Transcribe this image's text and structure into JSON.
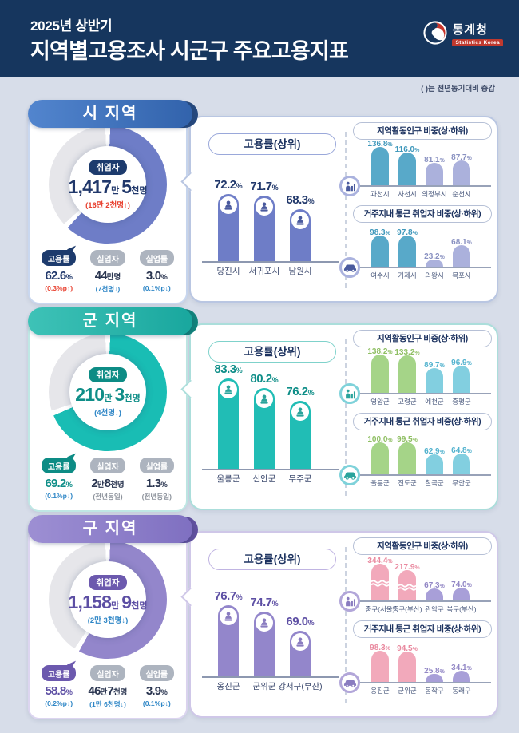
{
  "header": {
    "subtitle": "2025년 상반기",
    "title": "지역별고용조사 시군구 주요고용지표",
    "logo_name": "통계청",
    "logo_sub": "Statistics Korea"
  },
  "meta": {
    "note": "(  )는 전년동기대비 증감"
  },
  "colors": {
    "header_bg": "#16365e",
    "page_bg": "#d7dde9",
    "change_up": "#e8402f",
    "change_down": "#2e86c6",
    "change_same": "#8d939c",
    "donut_rest": "#e6e6ea"
  },
  "panels": [
    {
      "id": "si",
      "title": "시 지역",
      "theme": {
        "banner_from": "#5285ce",
        "banner_to": "#3263ac",
        "banner_fold": "#26497e",
        "card_border": "#c9d7ef",
        "right_border": "#b9c6e2",
        "donut": "#6e7dc7",
        "badge": "#1d3b6d",
        "val": "#21386b",
        "midbar": "#6e7dc7",
        "mid_border": "#9aa8da",
        "icon": "#4a5a9e",
        "icon_ring": "#aab2de",
        "top_bar": "#58a9c9",
        "top_val": "#3f98bb",
        "bottom_bar": "#abb1dc",
        "bottom_val": "#8991c1"
      },
      "employed": {
        "label": "취업자",
        "value_segments": [
          {
            "t": "1,417",
            "big": true
          },
          {
            "t": "만 ",
            "big": false
          },
          {
            "t": "5",
            "big": true
          },
          {
            "t": "천명",
            "big": false
          }
        ],
        "change": "(16만 2천명↑)",
        "dir": "up",
        "percent": 62.6
      },
      "stats": [
        {
          "label": "고용률",
          "segments": [
            {
              "t": "62.6",
              "big": true
            },
            {
              "t": "%",
              "big": false
            }
          ],
          "change": "(0.3%p↑)",
          "dir": "up",
          "emphasis": true
        },
        {
          "label": "실업자",
          "segments": [
            {
              "t": "44",
              "big": true
            },
            {
              "t": "만명",
              "big": false
            }
          ],
          "change": "(7천명↓)",
          "dir": "down",
          "emphasis": false
        },
        {
          "label": "실업률",
          "segments": [
            {
              "t": "3.0",
              "big": true
            },
            {
              "t": "%",
              "big": false
            }
          ],
          "change": "(0.1%p↓)",
          "dir": "down",
          "emphasis": false
        }
      ],
      "mid_chart": {
        "title": "고용률(상위)",
        "bars": [
          {
            "label": "당진시",
            "value": 72.2
          },
          {
            "label": "서귀포시",
            "value": 71.7
          },
          {
            "label": "남원시",
            "value": 68.3
          }
        ]
      },
      "right_charts": [
        {
          "title": "지역활동인구 비중(상·하위)",
          "icon": "person-city",
          "bars": [
            {
              "label": "과천시",
              "value": 136.8,
              "tier": "top"
            },
            {
              "label": "사천시",
              "value": 116.0,
              "tier": "top"
            },
            {
              "label": "의정부시",
              "value": 81.1,
              "tier": "bottom"
            },
            {
              "label": "순천시",
              "value": 87.7,
              "tier": "bottom"
            }
          ]
        },
        {
          "title": "거주지내 통근 취업자 비중(상·하위)",
          "icon": "car",
          "bars": [
            {
              "label": "여수시",
              "value": 98.3,
              "tier": "top"
            },
            {
              "label": "거제시",
              "value": 97.8,
              "tier": "top"
            },
            {
              "label": "의왕시",
              "value": 23.2,
              "tier": "bottom"
            },
            {
              "label": "목포시",
              "value": 68.1,
              "tier": "bottom"
            }
          ]
        }
      ]
    },
    {
      "id": "gun",
      "title": "군 지역",
      "theme": {
        "banner_from": "#3ec2b7",
        "banner_to": "#19a79e",
        "banner_fold": "#12837c",
        "card_border": "#bfe7e4",
        "right_border": "#abdedb",
        "donut": "#19bdb4",
        "badge": "#0d8c85",
        "val": "#0f8e88",
        "midbar": "#21bdb5",
        "mid_border": "#7fd2cb",
        "icon": "#2aa49c",
        "icon_ring": "#7fd2da",
        "top_bar": "#a5d488",
        "top_val": "#8fbf63",
        "bottom_bar": "#82cfe0",
        "bottom_val": "#52b2ce"
      },
      "employed": {
        "label": "취업자",
        "value_segments": [
          {
            "t": "210",
            "big": true
          },
          {
            "t": "만 ",
            "big": false
          },
          {
            "t": "3",
            "big": true
          },
          {
            "t": "천명",
            "big": false
          }
        ],
        "change": "(4천명↓)",
        "dir": "down",
        "percent": 69.2
      },
      "stats": [
        {
          "label": "고용률",
          "segments": [
            {
              "t": "69.2",
              "big": true
            },
            {
              "t": "%",
              "big": false
            }
          ],
          "change": "(0.1%p↓)",
          "dir": "down",
          "emphasis": true
        },
        {
          "label": "실업자",
          "segments": [
            {
              "t": "2",
              "big": true
            },
            {
              "t": "만",
              "big": false
            },
            {
              "t": "8",
              "big": true
            },
            {
              "t": "천명",
              "big": false
            }
          ],
          "change": "(전년동일)",
          "dir": "same",
          "emphasis": false
        },
        {
          "label": "실업률",
          "segments": [
            {
              "t": "1.3",
              "big": true
            },
            {
              "t": "%",
              "big": false
            }
          ],
          "change": "(전년동일)",
          "dir": "same",
          "emphasis": false
        }
      ],
      "mid_chart": {
        "title": "고용률(상위)",
        "bars": [
          {
            "label": "울릉군",
            "value": 83.3
          },
          {
            "label": "신안군",
            "value": 80.2
          },
          {
            "label": "무주군",
            "value": 76.2
          }
        ]
      },
      "right_charts": [
        {
          "title": "지역활동인구 비중(상·하위)",
          "icon": "person-city",
          "bars": [
            {
              "label": "영암군",
              "value": 138.2,
              "tier": "top"
            },
            {
              "label": "고령군",
              "value": 133.2,
              "tier": "top"
            },
            {
              "label": "예천군",
              "value": 89.7,
              "tier": "bottom"
            },
            {
              "label": "증평군",
              "value": 96.9,
              "tier": "bottom"
            }
          ]
        },
        {
          "title": "거주지내 통근 취업자 비중(상·하위)",
          "icon": "car",
          "bars": [
            {
              "label": "울릉군",
              "value": 100.0,
              "tier": "top"
            },
            {
              "label": "진도군",
              "value": 99.5,
              "tier": "top"
            },
            {
              "label": "칠곡군",
              "value": 62.9,
              "tier": "bottom"
            },
            {
              "label": "무안군",
              "value": 64.8,
              "tier": "bottom"
            }
          ]
        }
      ]
    },
    {
      "id": "gu",
      "title": "구 지역",
      "theme": {
        "banner_from": "#9d8fd3",
        "banner_to": "#7f70c1",
        "banner_fold": "#61519f",
        "card_border": "#dcd5f0",
        "right_border": "#cfc7e8",
        "donut": "#9386cb",
        "badge": "#6c59ae",
        "val": "#5d4fa4",
        "midbar": "#9386cb",
        "mid_border": "#c0b4e2",
        "icon": "#8a7cc0",
        "icon_ring": "#b2a6d9",
        "top_bar": "#f2a9bb",
        "top_val": "#e9899f",
        "bottom_bar": "#a89fd8",
        "bottom_val": "#9287c5"
      },
      "employed": {
        "label": "취업자",
        "value_segments": [
          {
            "t": "1,158",
            "big": true
          },
          {
            "t": "만 ",
            "big": false
          },
          {
            "t": "9",
            "big": true
          },
          {
            "t": "천명",
            "big": false
          }
        ],
        "change": "(2만 3천명↓)",
        "dir": "down",
        "percent": 58.8
      },
      "stats": [
        {
          "label": "고용률",
          "segments": [
            {
              "t": "58.8",
              "big": true
            },
            {
              "t": "%",
              "big": false
            }
          ],
          "change": "(0.2%p↓)",
          "dir": "down",
          "emphasis": true
        },
        {
          "label": "실업자",
          "segments": [
            {
              "t": "46",
              "big": true
            },
            {
              "t": "만",
              "big": false
            },
            {
              "t": "7",
              "big": true
            },
            {
              "t": "천명",
              "big": false
            }
          ],
          "change": "(1만 6천명↓)",
          "dir": "down",
          "emphasis": false
        },
        {
          "label": "실업률",
          "segments": [
            {
              "t": "3.9",
              "big": true
            },
            {
              "t": "%",
              "big": false
            }
          ],
          "change": "(0.1%p↓)",
          "dir": "down",
          "emphasis": false
        }
      ],
      "mid_chart": {
        "title": "고용률(상위)",
        "bars": [
          {
            "label": "옹진군",
            "value": 76.7
          },
          {
            "label": "군위군",
            "value": 74.7
          },
          {
            "label": "강서구(부산)",
            "value": 69.0
          }
        ]
      },
      "right_charts": [
        {
          "title": "지역활동인구 비중(상·하위)",
          "icon": "person-city",
          "bars": [
            {
              "label": "중구(서울)",
              "value": 344.4,
              "tier": "top"
            },
            {
              "label": "중구(부산)",
              "value": 217.9,
              "tier": "top"
            },
            {
              "label": "관악구",
              "value": 67.3,
              "tier": "bottom"
            },
            {
              "label": "북구(부산)",
              "value": 74.0,
              "tier": "bottom"
            }
          ]
        },
        {
          "title": "거주지내 통근 취업자 비중(상·하위)",
          "icon": "car",
          "bars": [
            {
              "label": "옹진군",
              "value": 98.3,
              "tier": "top"
            },
            {
              "label": "군위군",
              "value": 94.5,
              "tier": "top"
            },
            {
              "label": "동작구",
              "value": 25.8,
              "tier": "bottom"
            },
            {
              "label": "동래구",
              "value": 34.1,
              "tier": "bottom"
            }
          ]
        }
      ]
    }
  ],
  "chart_data": [
    {
      "type": "pie",
      "title": "시 지역 고용률",
      "labels": [
        "고용률",
        "기타"
      ],
      "values": [
        62.6,
        37.4
      ]
    },
    {
      "type": "bar",
      "title": "시 지역 고용률(상위)",
      "categories": [
        "당진시",
        "서귀포시",
        "남원시"
      ],
      "values": [
        72.2,
        71.7,
        68.3
      ],
      "ylabel": "%"
    },
    {
      "type": "bar",
      "title": "시 지역 지역활동인구 비중(상·하위)",
      "categories": [
        "과천시",
        "사천시",
        "의정부시",
        "순천시"
      ],
      "values": [
        136.8,
        116.0,
        81.1,
        87.7
      ],
      "ylabel": "%"
    },
    {
      "type": "bar",
      "title": "시 지역 거주지내 통근 취업자 비중(상·하위)",
      "categories": [
        "여수시",
        "거제시",
        "의왕시",
        "목포시"
      ],
      "values": [
        98.3,
        97.8,
        23.2,
        68.1
      ],
      "ylabel": "%"
    },
    {
      "type": "pie",
      "title": "군 지역 고용률",
      "labels": [
        "고용률",
        "기타"
      ],
      "values": [
        69.2,
        30.8
      ]
    },
    {
      "type": "bar",
      "title": "군 지역 고용률(상위)",
      "categories": [
        "울릉군",
        "신안군",
        "무주군"
      ],
      "values": [
        83.3,
        80.2,
        76.2
      ],
      "ylabel": "%"
    },
    {
      "type": "bar",
      "title": "군 지역 지역활동인구 비중(상·하위)",
      "categories": [
        "영암군",
        "고령군",
        "예천군",
        "증평군"
      ],
      "values": [
        138.2,
        133.2,
        89.7,
        96.9
      ],
      "ylabel": "%"
    },
    {
      "type": "bar",
      "title": "군 지역 거주지내 통근 취업자 비중(상·하위)",
      "categories": [
        "울릉군",
        "진도군",
        "칠곡군",
        "무안군"
      ],
      "values": [
        100.0,
        99.5,
        62.9,
        64.8
      ],
      "ylabel": "%"
    },
    {
      "type": "pie",
      "title": "구 지역 고용률",
      "labels": [
        "고용률",
        "기타"
      ],
      "values": [
        58.8,
        41.2
      ]
    },
    {
      "type": "bar",
      "title": "구 지역 고용률(상위)",
      "categories": [
        "옹진군",
        "군위군",
        "강서구(부산)"
      ],
      "values": [
        76.7,
        74.7,
        69.0
      ],
      "ylabel": "%"
    },
    {
      "type": "bar",
      "title": "구 지역 지역활동인구 비중(상·하위)",
      "categories": [
        "중구(서울)",
        "중구(부산)",
        "관악구",
        "북구(부산)"
      ],
      "values": [
        344.4,
        217.9,
        67.3,
        74.0
      ],
      "ylabel": "%"
    },
    {
      "type": "bar",
      "title": "구 지역 거주지내 통근 취업자 비중(상·하위)",
      "categories": [
        "옹진군",
        "군위군",
        "동작구",
        "동래구"
      ],
      "values": [
        98.3,
        94.5,
        25.8,
        34.1
      ],
      "ylabel": "%"
    }
  ]
}
